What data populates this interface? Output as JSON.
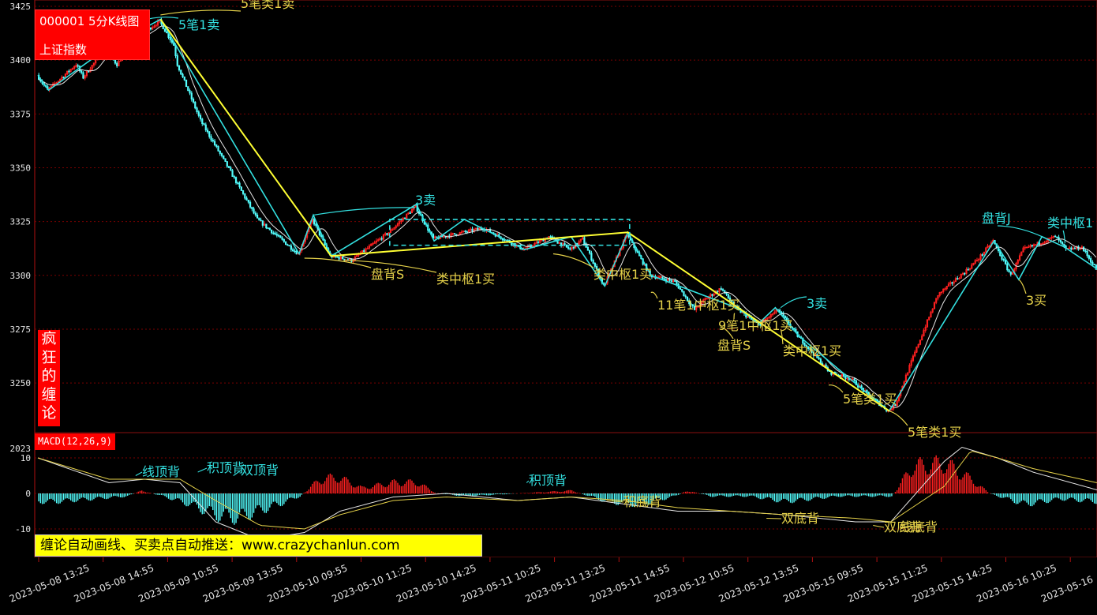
{
  "chart_title": "000001 5分K线图",
  "index_name": "上证指数",
  "side_badge": [
    "疯",
    "狂",
    "的",
    "缠",
    "论"
  ],
  "macd_label": "MACD(12,26,9)",
  "promo_text": "缠论自动画线、买卖点自动推送：www.crazychanlun.com",
  "colors": {
    "background": "#000000",
    "up_candle": "#ff2020",
    "down_candle": "#54ffff",
    "bi_line": "#33e0e0",
    "segment_line": "#ffff33",
    "hub_box": "#33e0e0",
    "ma_line": "#e6e6e6",
    "label_cyan": "#33e0e0",
    "label_yellow": "#e6d24a",
    "grid": "#7a0000"
  },
  "chart_data": [
    {
      "type": "candlestick",
      "title": "000001 5分K线图",
      "ylim": [
        3235,
        3425
      ],
      "y_ticks": [
        3250,
        3275,
        3300,
        3325,
        3350,
        3375,
        3400,
        3425
      ],
      "x_tick_labels": [
        "2023-05-08 13:25",
        "2023-05-08 14:55",
        "2023-05-09 10:55",
        "2023-05-09 13:55",
        "2023-05-10 09:55",
        "2023-05-10 11:25",
        "2023-05-10 14:25",
        "2023-05-11 10:25",
        "2023-05-11 13:25",
        "2023-05-11 14:55",
        "2023-05-12 10:55",
        "2023-05-12 13:55",
        "2023-05-15 09:55",
        "2023-05-15 11:25",
        "2023-05-15 14:25",
        "2023-05-16 10:25",
        "2023-05-16"
      ],
      "price_path": [
        [
          0,
          3393
        ],
        [
          6,
          3386
        ],
        [
          22,
          3398
        ],
        [
          26,
          3392
        ],
        [
          38,
          3405
        ],
        [
          45,
          3398
        ],
        [
          55,
          3410
        ],
        [
          69,
          3418
        ],
        [
          77,
          3407
        ],
        [
          79,
          3398
        ],
        [
          92,
          3372
        ],
        [
          109,
          3348
        ],
        [
          124,
          3326
        ],
        [
          137,
          3317
        ],
        [
          147,
          3310
        ],
        [
          155,
          3326
        ],
        [
          165,
          3309
        ],
        [
          177,
          3307
        ],
        [
          198,
          3320
        ],
        [
          213,
          3332
        ],
        [
          223,
          3317
        ],
        [
          251,
          3322
        ],
        [
          274,
          3312
        ],
        [
          288,
          3318
        ],
        [
          300,
          3312
        ],
        [
          307,
          3317
        ],
        [
          319,
          3295
        ],
        [
          332,
          3319
        ],
        [
          345,
          3300
        ],
        [
          359,
          3297
        ],
        [
          370,
          3284
        ],
        [
          376,
          3289
        ],
        [
          385,
          3294
        ],
        [
          393,
          3285
        ],
        [
          406,
          3277
        ],
        [
          417,
          3284
        ],
        [
          428,
          3272
        ],
        [
          446,
          3255
        ],
        [
          458,
          3252
        ],
        [
          467,
          3245
        ],
        [
          479,
          3237
        ],
        [
          483,
          3240
        ],
        [
          493,
          3262
        ],
        [
          507,
          3291
        ],
        [
          524,
          3303
        ],
        [
          530,
          3308
        ],
        [
          538,
          3316
        ],
        [
          548,
          3300
        ],
        [
          555,
          3312
        ],
        [
          573,
          3318
        ],
        [
          579,
          3312
        ],
        [
          588,
          3313
        ],
        [
          596,
          3303
        ]
      ],
      "candle_count": 596,
      "bi_vertices": [
        [
          0,
          3393
        ],
        [
          6,
          3386
        ],
        [
          38,
          3405
        ],
        [
          69,
          3419
        ],
        [
          147,
          3310
        ],
        [
          155,
          3328
        ],
        [
          165,
          3309
        ],
        [
          213,
          3333
        ],
        [
          223,
          3316
        ],
        [
          240,
          3326
        ],
        [
          274,
          3312
        ],
        [
          300,
          3318
        ],
        [
          319,
          3295
        ],
        [
          332,
          3320
        ],
        [
          345,
          3300
        ],
        [
          393,
          3285
        ],
        [
          406,
          3278
        ],
        [
          415,
          3285
        ],
        [
          428,
          3272
        ],
        [
          467,
          3245
        ],
        [
          479,
          3237
        ],
        [
          538,
          3316
        ],
        [
          552,
          3298
        ],
        [
          565,
          3318
        ],
        [
          578,
          3313
        ],
        [
          596,
          3303
        ]
      ],
      "segment_vertices": [
        [
          69,
          3419
        ],
        [
          165,
          3309
        ],
        [
          332,
          3320
        ],
        [
          479,
          3237
        ]
      ],
      "hubs": [
        {
          "from": [
            198,
            3314
          ],
          "to": [
            333,
            3326
          ]
        }
      ],
      "annotations": [
        {
          "text": "5笔类1卖",
          "at": [
            69,
            3421
          ],
          "color": "yellow"
        },
        {
          "text": "5笔1卖",
          "at": [
            57,
            3418
          ],
          "color": "cyan"
        },
        {
          "text": "3卖",
          "at": [
            155,
            3328
          ],
          "color": "cyan"
        },
        {
          "text": "盘背S",
          "at": [
            150,
            3308
          ],
          "color": "yellow"
        },
        {
          "text": "类中枢1买",
          "at": [
            172,
            3307
          ],
          "color": "yellow"
        },
        {
          "text": "类中枢1买",
          "at": [
            290,
            3310
          ],
          "color": "yellow"
        },
        {
          "text": "11笔1中枢1买",
          "at": [
            345,
            3292
          ],
          "color": "yellow"
        },
        {
          "text": "9笔1中枢1买",
          "at": [
            392,
            3282
          ],
          "color": "yellow"
        },
        {
          "text": "盘背S",
          "at": [
            384,
            3276
          ],
          "color": "yellow"
        },
        {
          "text": "3卖",
          "at": [
            418,
            3285
          ],
          "color": "cyan"
        },
        {
          "text": "类中枢1买",
          "at": [
            418,
            3275
          ],
          "color": "yellow"
        },
        {
          "text": "5笔类1买",
          "at": [
            445,
            3249
          ],
          "color": "yellow"
        },
        {
          "text": "5笔类1买",
          "at": [
            479,
            3237
          ],
          "color": "yellow"
        },
        {
          "text": "盘背J",
          "at": [
            565,
            3318
          ],
          "color": "cyan"
        },
        {
          "text": "类中枢1",
          "at": [
            578,
            3315
          ],
          "color": "cyan"
        },
        {
          "text": "3买",
          "at": [
            552,
            3298
          ],
          "color": "yellow"
        }
      ]
    },
    {
      "type": "macd",
      "title": "MACD(12,26,9)",
      "ylim": [
        -13,
        20
      ],
      "y_ticks": [
        -10,
        0,
        10
      ],
      "y_tick_labels": [
        "-10",
        "0",
        "10"
      ],
      "top_tick_label": "2023",
      "hist_keyframes": [
        [
          0,
          -3
        ],
        [
          10,
          -3
        ],
        [
          30,
          -2
        ],
        [
          50,
          -1
        ],
        [
          58,
          1
        ],
        [
          70,
          -1
        ],
        [
          85,
          -4
        ],
        [
          100,
          -8
        ],
        [
          112,
          -9
        ],
        [
          135,
          -4
        ],
        [
          147,
          -1
        ],
        [
          158,
          5
        ],
        [
          168,
          6
        ],
        [
          182,
          2
        ],
        [
          200,
          4
        ],
        [
          213,
          4
        ],
        [
          224,
          0
        ],
        [
          240,
          -1
        ],
        [
          270,
          0
        ],
        [
          300,
          1
        ],
        [
          320,
          -3
        ],
        [
          338,
          -4
        ],
        [
          358,
          -1
        ],
        [
          365,
          1
        ],
        [
          378,
          -1
        ],
        [
          400,
          -1
        ],
        [
          420,
          -3
        ],
        [
          450,
          -1
        ],
        [
          480,
          -1
        ],
        [
          492,
          10
        ],
        [
          510,
          11
        ],
        [
          525,
          5
        ],
        [
          535,
          0
        ],
        [
          555,
          -4
        ],
        [
          575,
          -2
        ],
        [
          596,
          -3
        ]
      ],
      "dif_keyframes": [
        [
          0,
          10
        ],
        [
          40,
          3
        ],
        [
          60,
          4
        ],
        [
          80,
          3
        ],
        [
          100,
          -8
        ],
        [
          125,
          -13
        ],
        [
          150,
          -11
        ],
        [
          170,
          -5
        ],
        [
          200,
          -1
        ],
        [
          230,
          0
        ],
        [
          270,
          -2
        ],
        [
          300,
          -1
        ],
        [
          330,
          -3
        ],
        [
          360,
          -5
        ],
        [
          390,
          -5
        ],
        [
          420,
          -6
        ],
        [
          460,
          -8
        ],
        [
          480,
          -8
        ],
        [
          510,
          9
        ],
        [
          520,
          13
        ],
        [
          540,
          10
        ],
        [
          560,
          6
        ],
        [
          596,
          1
        ]
      ],
      "dea_keyframes": [
        [
          0,
          10
        ],
        [
          40,
          4
        ],
        [
          60,
          4
        ],
        [
          80,
          4
        ],
        [
          100,
          -2
        ],
        [
          125,
          -9
        ],
        [
          150,
          -10
        ],
        [
          170,
          -6
        ],
        [
          200,
          -2
        ],
        [
          230,
          -1
        ],
        [
          270,
          -2
        ],
        [
          300,
          -1
        ],
        [
          330,
          -2
        ],
        [
          360,
          -4
        ],
        [
          390,
          -5
        ],
        [
          420,
          -6
        ],
        [
          460,
          -7
        ],
        [
          480,
          -8
        ],
        [
          510,
          2
        ],
        [
          525,
          12
        ],
        [
          540,
          10
        ],
        [
          560,
          7
        ],
        [
          596,
          3
        ]
      ],
      "annotations": [
        {
          "text": "线顶背",
          "at": [
            55,
            5
          ],
          "color": "cyan"
        },
        {
          "text": "积顶背",
          "at": [
            90,
            6
          ],
          "color": "cyan"
        },
        {
          "text": "双顶背",
          "at": [
            110,
            5
          ],
          "color": "cyan"
        },
        {
          "text": "积顶背",
          "at": [
            275,
            3
          ],
          "color": "cyan"
        },
        {
          "text": "积底背",
          "at": [
            320,
            -2
          ],
          "color": "yellow"
        },
        {
          "text": "双底背",
          "at": [
            410,
            -7
          ],
          "color": "yellow"
        },
        {
          "text": "双底背",
          "at": [
            470,
            -9
          ],
          "color": "yellow"
        },
        {
          "text": "线底背",
          "at": [
            500,
            -9
          ],
          "color": "yellow"
        }
      ]
    }
  ]
}
